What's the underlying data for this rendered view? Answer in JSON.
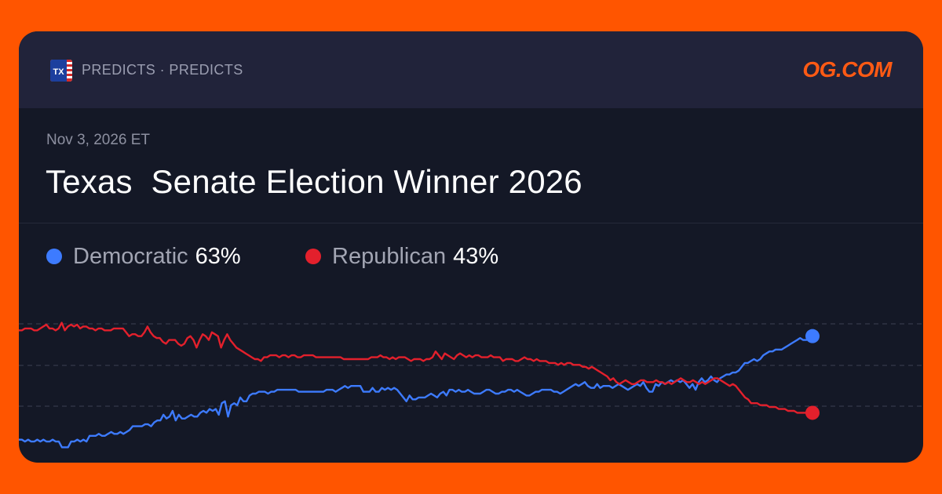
{
  "header": {
    "flag_label": "TX",
    "brand": "PREDICTS · PREDICTS",
    "logo": "OG.COM"
  },
  "market": {
    "date": "Nov 3, 2026 ET",
    "title": "Texas  Senate Election Winner 2026"
  },
  "colors": {
    "democratic": "#3d7bff",
    "republican": "#e3202c",
    "accent": "#ff5500"
  },
  "chart_data": {
    "type": "line",
    "title": "",
    "xlabel": "",
    "ylabel": "",
    "ylim": [
      30,
      75
    ],
    "grid": true,
    "legend_position": "top-left",
    "series": [
      {
        "name": "Democratic",
        "label_value": "63%",
        "color": "#3d7bff",
        "values": [
          36,
          36,
          35.5,
          36,
          35.5,
          35.5,
          36,
          35.5,
          36,
          35.5,
          35.5,
          36,
          35.5,
          35.5,
          34,
          34,
          34,
          35.5,
          35.5,
          36,
          35.5,
          36,
          35.5,
          37,
          37,
          37,
          37.5,
          37,
          37,
          37.5,
          38,
          37.5,
          37.5,
          38,
          37.5,
          38,
          38.5,
          39.5,
          39.5,
          39.5,
          39.5,
          40,
          40,
          39.5,
          40.5,
          41,
          41,
          42.5,
          41.5,
          42,
          43.5,
          41,
          42.5,
          41.5,
          41.5,
          42,
          42.5,
          42,
          42,
          43,
          43.5,
          43,
          44,
          43.5,
          44,
          42.5,
          45.5,
          46,
          42,
          45,
          45.5,
          45,
          47,
          46,
          46,
          47.5,
          48,
          48,
          48.5,
          48.5,
          48.5,
          48,
          48.5,
          48.5,
          49,
          49,
          49,
          49,
          49,
          49,
          49,
          48.5,
          48.5,
          48.5,
          48.5,
          48.5,
          48.5,
          48.5,
          48.5,
          48.5,
          49,
          49,
          49,
          48.5,
          49,
          49.5,
          50,
          49.5,
          50,
          50,
          50,
          50,
          48.5,
          48.5,
          48.5,
          49.5,
          48.5,
          48.5,
          49.5,
          49,
          49.5,
          49,
          49.5,
          49,
          48,
          47,
          46,
          47.5,
          46.5,
          46.5,
          47,
          47,
          47,
          47.5,
          48,
          47.5,
          47,
          48,
          48.5,
          47.5,
          49,
          49,
          48.5,
          49,
          48.5,
          48.5,
          49,
          48.5,
          48,
          48,
          48,
          48.5,
          49,
          49,
          48.5,
          48,
          48,
          48.5,
          48.5,
          49,
          49,
          48.5,
          49,
          48.5,
          48,
          47.5,
          47.5,
          48,
          48.5,
          48.5,
          49,
          49,
          49,
          49,
          48.5,
          48.5,
          48,
          48.5,
          49,
          49.5,
          50,
          50.5,
          50,
          50.5,
          51,
          50,
          49.5,
          49.5,
          50.5,
          49.5,
          50,
          50,
          50,
          49.5,
          50,
          50.5,
          50,
          49.5,
          49,
          49.5,
          50,
          50.5,
          50,
          51,
          49.5,
          48.5,
          48.5,
          50.5,
          50,
          51,
          50.5,
          51,
          51.5,
          51,
          51.5,
          51,
          51.5,
          50.5,
          49.5,
          50.5,
          49,
          51,
          52,
          51,
          51.5,
          52.5,
          51.5,
          51,
          52,
          52.5,
          53,
          53,
          53.5,
          53.5,
          54,
          55,
          56,
          56,
          56.5,
          57,
          56.5,
          57,
          58,
          58.5,
          59,
          59,
          59.5,
          59.5,
          59.5,
          60,
          60.5,
          61,
          61.5,
          62,
          62.5,
          62,
          62,
          62.5,
          63
        ]
      },
      {
        "name": "Republican",
        "label_value": "43%",
        "color": "#e3202c",
        "values": [
          64.5,
          64.5,
          65,
          65,
          65,
          64.5,
          64.5,
          65,
          65.5,
          66,
          65,
          65,
          64.5,
          65,
          66.5,
          64.5,
          65.5,
          66,
          65.5,
          66,
          65,
          65.5,
          65.5,
          65,
          65,
          64.5,
          65,
          65,
          64.5,
          64.5,
          64.5,
          65,
          65,
          65,
          65,
          64,
          63,
          63.5,
          63.5,
          63,
          63,
          64,
          65.5,
          64,
          63,
          62.5,
          62.5,
          61.5,
          61,
          62,
          62,
          62,
          61,
          60.5,
          61,
          62.5,
          63,
          62,
          60,
          62,
          63.5,
          63,
          62,
          64,
          63.5,
          63,
          60,
          62,
          63.5,
          62,
          61,
          60,
          59.5,
          59,
          58.5,
          58,
          57.5,
          57,
          57,
          56.5,
          57.5,
          57.5,
          58,
          58,
          58,
          57.5,
          58,
          58,
          57.5,
          58,
          58,
          57.5,
          57.5,
          58,
          58,
          58,
          58,
          57.5,
          57.5,
          57.5,
          57.5,
          57.5,
          57.5,
          57.5,
          57.5,
          57.5,
          57,
          57,
          57,
          57,
          57,
          57,
          57,
          57,
          57,
          57.5,
          57.5,
          57.5,
          58,
          57.5,
          57.5,
          57,
          57.5,
          57,
          57.5,
          57.5,
          57.5,
          57,
          56.5,
          57,
          57,
          57,
          56.5,
          57,
          57,
          57.5,
          59,
          58,
          57,
          58.5,
          58,
          57.5,
          57,
          58,
          58.5,
          58,
          57.5,
          58,
          57.5,
          58,
          58,
          57.5,
          57.5,
          57.5,
          58,
          57.5,
          57.5,
          57.5,
          56.5,
          57,
          57,
          57,
          56.5,
          56.5,
          57,
          57.5,
          57,
          57,
          56.5,
          57,
          56.5,
          56.5,
          56.5,
          56,
          56,
          56,
          55.5,
          56,
          55.5,
          56,
          56,
          55.5,
          55.5,
          55.5,
          55,
          55,
          54.5,
          55,
          54.5,
          54,
          53.5,
          53,
          52.5,
          51.5,
          52,
          51,
          50.5,
          51,
          51.5,
          51,
          50.5,
          50.5,
          51,
          51.5,
          51.5,
          51,
          51,
          51,
          51.5,
          51,
          51,
          50.5,
          51,
          50.5,
          51,
          51.5,
          52,
          51.5,
          51,
          51,
          51.5,
          51,
          50.5,
          51,
          50.5,
          51,
          51.5,
          52,
          52,
          51.5,
          51,
          50.5,
          50,
          50.5,
          50,
          49,
          48,
          47,
          46.5,
          45.5,
          45.5,
          45.5,
          45,
          45,
          45,
          44.5,
          44.5,
          44.5,
          44,
          44,
          44,
          43.5,
          43.5,
          43.5,
          43,
          43,
          43,
          43,
          43,
          43
        ]
      }
    ]
  }
}
